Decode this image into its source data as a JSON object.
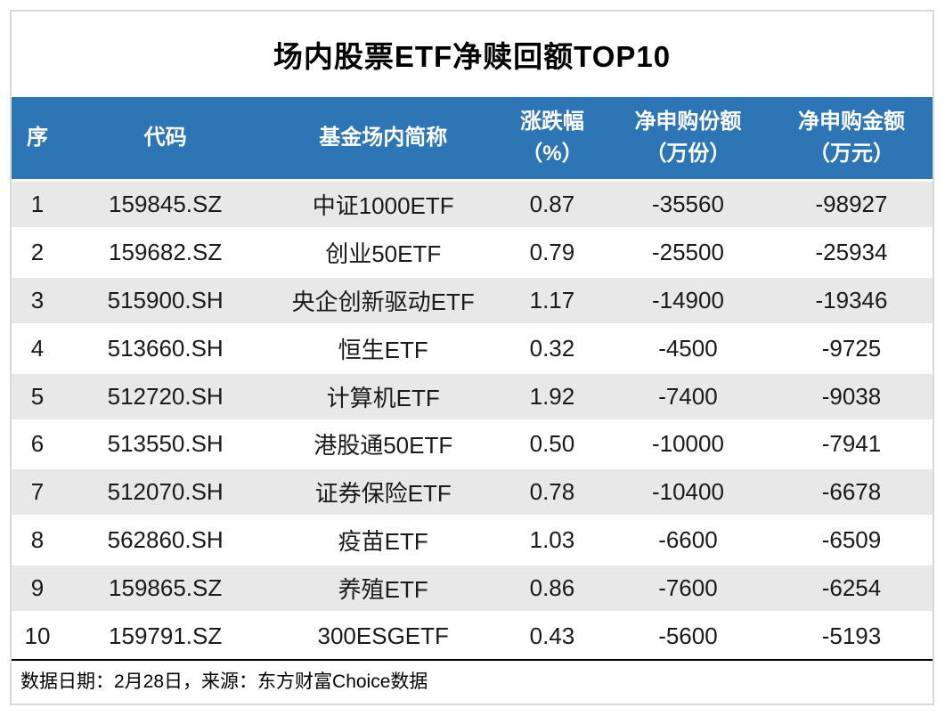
{
  "title": "场内股票ETF净赎回额TOP10",
  "colors": {
    "header_bg": "#2E75B6",
    "header_text": "#FFFFFF",
    "row_alt_bg": "#E9E8E8",
    "body_text": "#1A1A1A",
    "card_border": "#D9D9D9",
    "footer_rule": "#000000"
  },
  "chart_data": {
    "type": "table",
    "title": "场内股票ETF净赎回额TOP10",
    "columns": [
      {
        "label": "序",
        "sub": ""
      },
      {
        "label": "代码",
        "sub": ""
      },
      {
        "label": "基金场内简称",
        "sub": ""
      },
      {
        "label": "涨跌幅",
        "sub": "（%）"
      },
      {
        "label": "净申购份额",
        "sub": "（万份）"
      },
      {
        "label": "净申购金额",
        "sub": "（万元）"
      }
    ],
    "rows": [
      [
        "1",
        "159845.SZ",
        "中证1000ETF",
        "0.87",
        "-35560",
        "-98927"
      ],
      [
        "2",
        "159682.SZ",
        "创业50ETF",
        "0.79",
        "-25500",
        "-25934"
      ],
      [
        "3",
        "515900.SH",
        "央企创新驱动ETF",
        "1.17",
        "-14900",
        "-19346"
      ],
      [
        "4",
        "513660.SH",
        "恒生ETF",
        "0.32",
        "-4500",
        "-9725"
      ],
      [
        "5",
        "512720.SH",
        "计算机ETF",
        "1.92",
        "-7400",
        "-9038"
      ],
      [
        "6",
        "513550.SH",
        "港股通50ETF",
        "0.50",
        "-10000",
        "-7941"
      ],
      [
        "7",
        "512070.SH",
        "证券保险ETF",
        "0.78",
        "-10400",
        "-6678"
      ],
      [
        "8",
        "562860.SH",
        "疫苗ETF",
        "1.03",
        "-6600",
        "-6509"
      ],
      [
        "9",
        "159865.SZ",
        "养殖ETF",
        "0.86",
        "-7600",
        "-6254"
      ],
      [
        "10",
        "159791.SZ",
        "300ESGETF",
        "0.43",
        "-5600",
        "-5193"
      ]
    ],
    "source_note": "数据日期：2月28日，来源：东方财富Choice数据"
  }
}
